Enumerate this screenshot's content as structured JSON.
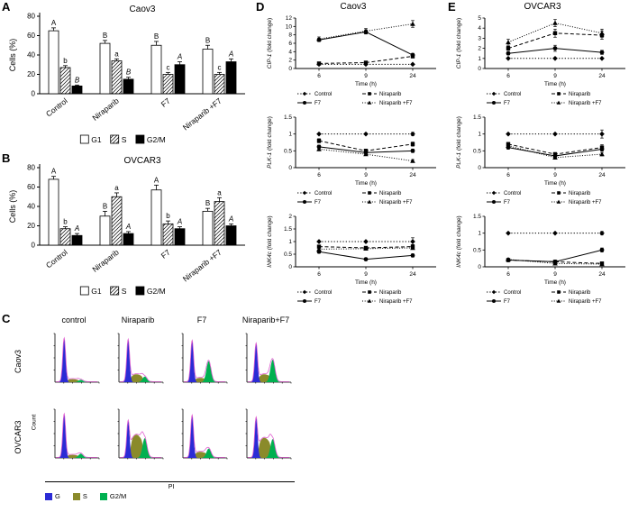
{
  "panels": {
    "A": {
      "label": "A"
    },
    "B": {
      "label": "B"
    },
    "C": {
      "label": "C"
    },
    "D": {
      "label": "D",
      "title": "Caov3"
    },
    "E": {
      "label": "E",
      "title": "OVCAR3"
    }
  },
  "colors": {
    "g1": "#2b2bd5",
    "s": "#8a8a2a",
    "g2": "#00b050",
    "outline": "#e060d0",
    "axis": "#000000"
  },
  "chart_data": [
    {
      "panel": "A",
      "type": "bar",
      "title": "Caov3",
      "ylabel": "Cells (%)",
      "ylim": [
        0,
        80
      ],
      "yticks": [
        0,
        20,
        40,
        60,
        80
      ],
      "categories": [
        "Control",
        "Niraparib",
        "F7",
        "Niraparib +F7"
      ],
      "series": [
        {
          "name": "G1",
          "style": "open",
          "values": [
            65,
            52,
            50,
            46
          ],
          "errors": [
            3,
            3,
            4,
            4
          ],
          "sig": [
            "A",
            "B",
            "B",
            "B"
          ],
          "italic": false
        },
        {
          "name": "S",
          "style": "hatch",
          "values": [
            27,
            34,
            20,
            20
          ],
          "errors": [
            2,
            2,
            2,
            2
          ],
          "sig": [
            "b",
            "a",
            "c",
            "c"
          ],
          "italic": false
        },
        {
          "name": "G2/M",
          "style": "solid",
          "values": [
            8,
            15,
            30,
            33
          ],
          "errors": [
            1,
            2,
            3,
            3
          ],
          "sig": [
            "B",
            "B",
            "A",
            "A"
          ],
          "italic": true
        }
      ]
    },
    {
      "panel": "B",
      "type": "bar",
      "title": "OVCAR3",
      "ylabel": "Cells (%)",
      "ylim": [
        0,
        80
      ],
      "yticks": [
        0,
        20,
        40,
        60,
        80
      ],
      "categories": [
        "Control",
        "Niraparib",
        "F7",
        "Niraparib +F7"
      ],
      "series": [
        {
          "name": "G1",
          "style": "open",
          "values": [
            68,
            30,
            57,
            35
          ],
          "errors": [
            3,
            5,
            5,
            3
          ],
          "sig": [
            "A",
            "B",
            "A",
            "B"
          ],
          "italic": false
        },
        {
          "name": "S",
          "style": "hatch",
          "values": [
            17,
            50,
            22,
            45
          ],
          "errors": [
            2,
            4,
            3,
            4
          ],
          "sig": [
            "b",
            "a",
            "b",
            "a"
          ],
          "italic": false
        },
        {
          "name": "G2/M",
          "style": "solid",
          "values": [
            10,
            12,
            17,
            20
          ],
          "errors": [
            2,
            2,
            2,
            2
          ],
          "sig": [
            "A",
            "A",
            "A",
            "A"
          ],
          "italic": true
        }
      ]
    },
    {
      "panel": "D",
      "type": "line",
      "gene": "CIP-1",
      "ylabel_rest": "(fold change)",
      "xlabel": "Time (h)",
      "x": [
        6,
        9,
        24
      ],
      "ylim": [
        0,
        12
      ],
      "yticks": [
        0,
        2,
        4,
        6,
        8,
        10,
        12
      ],
      "series": [
        {
          "name": "Control",
          "dash": "dot",
          "marker": "diamond",
          "values": [
            1,
            1,
            1
          ],
          "errors": [
            0,
            0,
            0
          ]
        },
        {
          "name": "Niraparib",
          "dash": "dash",
          "marker": "square",
          "values": [
            1.2,
            1.4,
            2.9
          ],
          "errors": [
            0,
            0,
            0.4
          ]
        },
        {
          "name": "F7",
          "dash": "solid",
          "marker": "circle",
          "values": [
            6.8,
            8.7,
            3.2
          ],
          "errors": [
            0.4,
            0.5,
            0.4
          ]
        },
        {
          "name": "Niraparib +F7",
          "dash": "finedot",
          "marker": "triangle",
          "values": [
            7,
            8.9,
            10.6
          ],
          "errors": [
            0.5,
            0.6,
            0.8
          ]
        }
      ]
    },
    {
      "panel": "D",
      "type": "line",
      "gene": "PLK-1",
      "ylabel_rest": "(fold change)",
      "xlabel": "Time (h)",
      "x": [
        6,
        9,
        24
      ],
      "ylim": [
        0,
        1.5
      ],
      "yticks": [
        0,
        0.5,
        1,
        1.5
      ],
      "series": [
        {
          "name": "Control",
          "dash": "dot",
          "marker": "diamond",
          "values": [
            1,
            1,
            1
          ],
          "errors": [
            0,
            0,
            0.05
          ]
        },
        {
          "name": "Niraparib",
          "dash": "dash",
          "marker": "square",
          "values": [
            0.8,
            0.5,
            0.7
          ],
          "errors": [
            0.06,
            0.05,
            0.06
          ]
        },
        {
          "name": "F7",
          "dash": "solid",
          "marker": "circle",
          "values": [
            0.62,
            0.45,
            0.5
          ],
          "errors": [
            0.05,
            0.05,
            0.05
          ]
        },
        {
          "name": "Niraparib +F7",
          "dash": "finedot",
          "marker": "triangle",
          "values": [
            0.55,
            0.4,
            0.2
          ],
          "errors": [
            0.05,
            0.04,
            0.04
          ]
        }
      ]
    },
    {
      "panel": "D",
      "type": "line",
      "gene": "INK4c",
      "ylabel_rest": "(fold change)",
      "xlabel": "Time (h)",
      "x": [
        6,
        9,
        24
      ],
      "ylim": [
        0,
        2
      ],
      "yticks": [
        0,
        0.5,
        1,
        1.5,
        2
      ],
      "series": [
        {
          "name": "Control",
          "dash": "dot",
          "marker": "diamond",
          "values": [
            1,
            1,
            1
          ],
          "errors": [
            0,
            0,
            0.15
          ]
        },
        {
          "name": "Niraparib",
          "dash": "dash",
          "marker": "square",
          "values": [
            0.8,
            0.75,
            0.8
          ],
          "errors": [
            0.06,
            0.06,
            0.08
          ]
        },
        {
          "name": "F7",
          "dash": "solid",
          "marker": "circle",
          "values": [
            0.6,
            0.3,
            0.45
          ],
          "errors": [
            0.06,
            0.05,
            0.06
          ]
        },
        {
          "name": "Niraparib +F7",
          "dash": "finedot",
          "marker": "triangle",
          "values": [
            0.7,
            0.72,
            0.75
          ],
          "errors": [
            0.06,
            0.06,
            0.06
          ]
        }
      ]
    },
    {
      "panel": "E",
      "type": "line",
      "gene": "CIP-1",
      "ylabel_rest": "(fold change)",
      "xlabel": "Time (h)",
      "x": [
        6,
        9,
        24
      ],
      "ylim": [
        0,
        5
      ],
      "yticks": [
        0,
        1,
        2,
        3,
        4,
        5
      ],
      "series": [
        {
          "name": "Control",
          "dash": "dot",
          "marker": "diamond",
          "values": [
            1,
            1,
            1
          ],
          "errors": [
            0,
            0,
            0
          ]
        },
        {
          "name": "Niraparib",
          "dash": "dash",
          "marker": "square",
          "values": [
            2,
            3.5,
            3.3
          ],
          "errors": [
            0.2,
            0.4,
            0.4
          ]
        },
        {
          "name": "F7",
          "dash": "solid",
          "marker": "circle",
          "values": [
            1.5,
            2,
            1.6
          ],
          "errors": [
            0.15,
            0.3,
            0.2
          ]
        },
        {
          "name": "Niraparib +F7",
          "dash": "finedot",
          "marker": "triangle",
          "values": [
            2.6,
            4.5,
            3.5
          ],
          "errors": [
            0.3,
            0.35,
            0.4
          ]
        }
      ]
    },
    {
      "panel": "E",
      "type": "line",
      "gene": "PLK-1",
      "ylabel_rest": "(fold change)",
      "xlabel": "Time (h)",
      "x": [
        6,
        9,
        24
      ],
      "ylim": [
        0,
        1.5
      ],
      "yticks": [
        0,
        0.5,
        1,
        1.5
      ],
      "series": [
        {
          "name": "Control",
          "dash": "dot",
          "marker": "diamond",
          "values": [
            1,
            1,
            1
          ],
          "errors": [
            0,
            0,
            0.12
          ]
        },
        {
          "name": "Niraparib",
          "dash": "dash",
          "marker": "square",
          "values": [
            0.7,
            0.4,
            0.6
          ],
          "errors": [
            0.05,
            0.05,
            0.08
          ]
        },
        {
          "name": "F7",
          "dash": "solid",
          "marker": "circle",
          "values": [
            0.6,
            0.35,
            0.55
          ],
          "errors": [
            0.05,
            0.05,
            0.06
          ]
        },
        {
          "name": "Niraparib +F7",
          "dash": "finedot",
          "marker": "triangle",
          "values": [
            0.65,
            0.3,
            0.4
          ],
          "errors": [
            0.05,
            0.04,
            0.05
          ]
        }
      ]
    },
    {
      "panel": "E",
      "type": "line",
      "gene": "INK4c",
      "ylabel_rest": "(fold change)",
      "xlabel": "Time (h)",
      "x": [
        6,
        9,
        24
      ],
      "ylim": [
        0,
        1.5
      ],
      "yticks": [
        0,
        0.5,
        1,
        1.5
      ],
      "series": [
        {
          "name": "Control",
          "dash": "dot",
          "marker": "diamond",
          "values": [
            1,
            1,
            1
          ],
          "errors": [
            0,
            0,
            0.05
          ]
        },
        {
          "name": "Niraparib",
          "dash": "dash",
          "marker": "square",
          "values": [
            0.2,
            0.15,
            0.1
          ],
          "errors": [
            0.03,
            0.03,
            0.03
          ]
        },
        {
          "name": "F7",
          "dash": "solid",
          "marker": "circle",
          "values": [
            0.2,
            0.15,
            0.5
          ],
          "errors": [
            0.03,
            0.03,
            0.06
          ]
        },
        {
          "name": "Niraparib +F7",
          "dash": "finedot",
          "marker": "triangle",
          "values": [
            0.22,
            0.1,
            0.08
          ],
          "errors": [
            0.03,
            0.02,
            0.02
          ]
        }
      ]
    },
    {
      "panel": "C",
      "type": "histogram-grid",
      "rows": [
        "Caov3",
        "OVCAR3"
      ],
      "columns": [
        "control",
        "Niraparib",
        "F7",
        "Niraparib+F7"
      ],
      "ylabel": "Count",
      "xlabel": "PI",
      "legend": [
        {
          "label": "G",
          "color_key": "g1"
        },
        {
          "label": "S",
          "color_key": "s"
        },
        {
          "label": "G2/M",
          "color_key": "g2"
        }
      ],
      "plots": [
        [
          {
            "g1": 0.93,
            "s": 0.05,
            "g2": 0.05
          },
          {
            "g1": 0.9,
            "s": 0.13,
            "g2": 0.12
          },
          {
            "g1": 0.88,
            "s": 0.07,
            "g2": 0.45
          },
          {
            "g1": 0.82,
            "s": 0.13,
            "g2": 0.48
          }
        ],
        [
          {
            "g1": 0.93,
            "s": 0.05,
            "g2": 0.09
          },
          {
            "g1": 0.78,
            "s": 0.38,
            "g2": 0.42
          },
          {
            "g1": 0.9,
            "s": 0.1,
            "g2": 0.2
          },
          {
            "g1": 0.85,
            "s": 0.33,
            "g2": 0.4
          }
        ]
      ]
    }
  ]
}
